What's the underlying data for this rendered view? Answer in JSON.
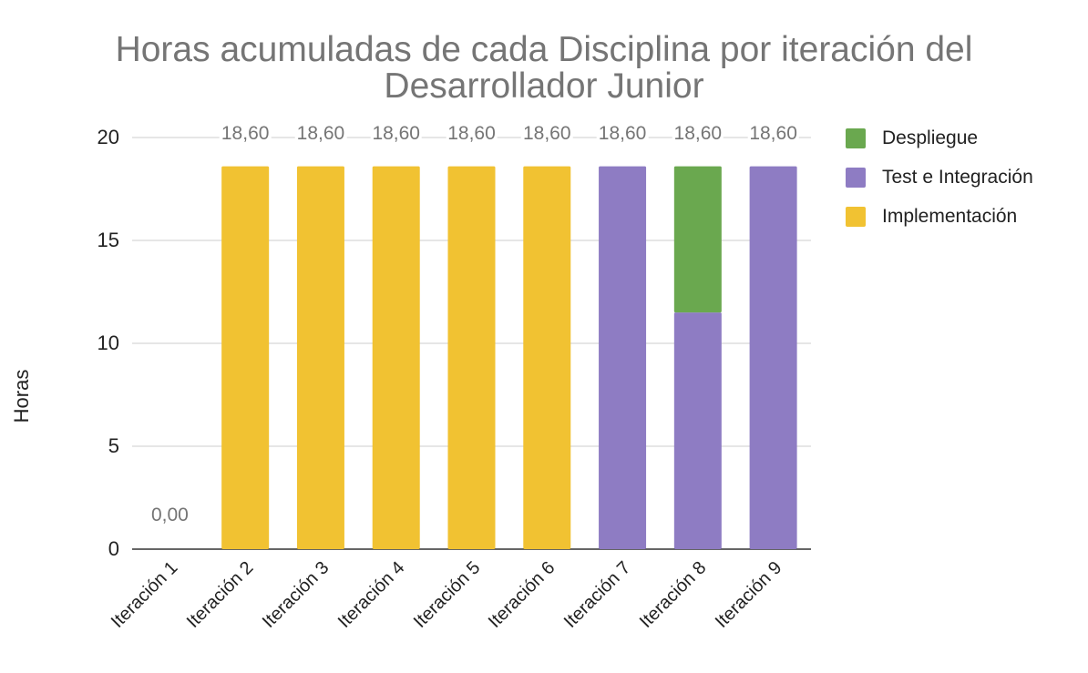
{
  "chart_data": {
    "type": "bar",
    "stacked": true,
    "title": "Horas acumuladas de cada Disciplina por iteración del Desarrollador Junior",
    "title_lines": [
      "Horas acumuladas de cada Disciplina por iteración del",
      "Desarrollador Junior"
    ],
    "xlabel": "",
    "ylabel": "Horas",
    "ylim": [
      0,
      20
    ],
    "yticks": [
      "0",
      "5",
      "10",
      "15",
      "20"
    ],
    "grid": true,
    "legend_position": "right",
    "categories": [
      "Iteración 1",
      "Iteración 2",
      "Iteración 3",
      "Iteración 4",
      "Iteración 5",
      "Iteración 6",
      "Iteración 7",
      "Iteración 8",
      "Iteración 9"
    ],
    "series": [
      {
        "name": "Implementación",
        "color": "#f1c232",
        "values": [
          0,
          18.6,
          18.6,
          18.6,
          18.6,
          18.6,
          0,
          0,
          0
        ]
      },
      {
        "name": "Test e Integración",
        "color": "#8e7cc3",
        "values": [
          0,
          0,
          0,
          0,
          0,
          0,
          18.6,
          11.5,
          18.6
        ]
      },
      {
        "name": "Despliegue",
        "color": "#6aa84f",
        "values": [
          0,
          0,
          0,
          0,
          0,
          0,
          0,
          7.1,
          0
        ]
      }
    ],
    "legend_order": [
      "Despliegue",
      "Test e Integración",
      "Implementación"
    ],
    "total_labels": [
      "0,00",
      "18,60",
      "18,60",
      "18,60",
      "18,60",
      "18,60",
      "18,60",
      "18,60",
      "18,60"
    ]
  }
}
